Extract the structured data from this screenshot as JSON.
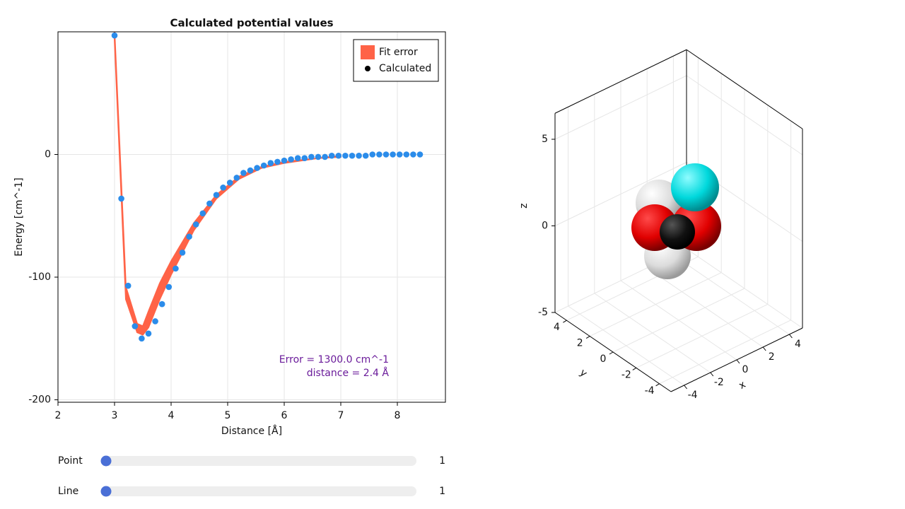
{
  "chart_data": [
    {
      "type": "scatter",
      "title": "Calculated potential values",
      "xlabel": "Distance   [Å]",
      "ylabel": "Energy   [cm^-1]",
      "xlim": [
        2,
        8.85
      ],
      "ylim": [
        -202,
        100
      ],
      "xticks": [
        2,
        3,
        4,
        5,
        6,
        7,
        8
      ],
      "yticks": [
        -200,
        -100,
        0
      ],
      "grid": true,
      "legend": "top-right",
      "series": [
        {
          "name": "Fit error",
          "type": "band",
          "color": "#ff6347",
          "x": [
            3.0,
            3.2,
            3.4,
            3.5,
            3.6,
            3.8,
            4.0,
            4.4,
            4.8,
            5.2,
            5.6,
            6.0,
            6.6,
            7.0
          ],
          "lower": [
            94,
            -118,
            -145,
            -147,
            -141,
            -118,
            -98,
            -62,
            -36,
            -20,
            -11,
            -7,
            -3,
            -2
          ],
          "upper": [
            100,
            -108,
            -138,
            -140,
            -128,
            -105,
            -87,
            -56,
            -33,
            -18,
            -10,
            -6,
            -3,
            -1
          ]
        },
        {
          "name": "Calculated",
          "type": "points",
          "color": "#2b8cea",
          "legend_color": "#000000",
          "x": [
            3.0,
            3.12,
            3.24,
            3.36,
            3.48,
            3.6,
            3.72,
            3.84,
            3.96,
            4.08,
            4.2,
            4.32,
            4.44,
            4.56,
            4.68,
            4.8,
            4.92,
            5.04,
            5.16,
            5.28,
            5.4,
            5.52,
            5.64,
            5.76,
            5.88,
            6.0,
            6.12,
            6.24,
            6.36,
            6.48,
            6.6,
            6.72,
            6.84,
            6.96,
            7.08,
            7.2,
            7.32,
            7.44,
            7.56,
            7.68,
            7.8,
            7.92,
            8.04,
            8.16,
            8.28,
            8.4
          ],
          "values": [
            97,
            -36,
            -107,
            -140,
            -150,
            -146,
            -136,
            -122,
            -108,
            -93,
            -80,
            -67,
            -57,
            -48,
            -40,
            -33,
            -27,
            -23,
            -19,
            -15,
            -13,
            -11,
            -9,
            -7,
            -6,
            -5,
            -4,
            -3,
            -3,
            -2,
            -2,
            -2,
            -1,
            -1,
            -1,
            -1,
            -1,
            -1,
            0,
            0,
            0,
            0,
            0,
            0,
            0,
            0
          ]
        }
      ],
      "annotations": [
        "Error = 1300.0 cm^-1",
        "distance = 2.4 Å"
      ],
      "annotation_color": "#6a1b9a"
    },
    {
      "type": "scatter3d",
      "xlabel": "x",
      "ylabel": "y",
      "zlabel": "z",
      "xlim": [
        -5,
        5
      ],
      "ylim": [
        -5,
        5
      ],
      "zlim": [
        -5,
        6.5
      ],
      "xticks": [
        -4,
        -2,
        0,
        2,
        4
      ],
      "yticks": [
        -4,
        -2,
        0,
        2,
        4
      ],
      "zticks": [
        -5,
        0,
        5
      ]
    }
  ],
  "controls": {
    "sliders": [
      {
        "label": "Point",
        "value": 1
      },
      {
        "label": "Line",
        "value": 1
      }
    ]
  }
}
